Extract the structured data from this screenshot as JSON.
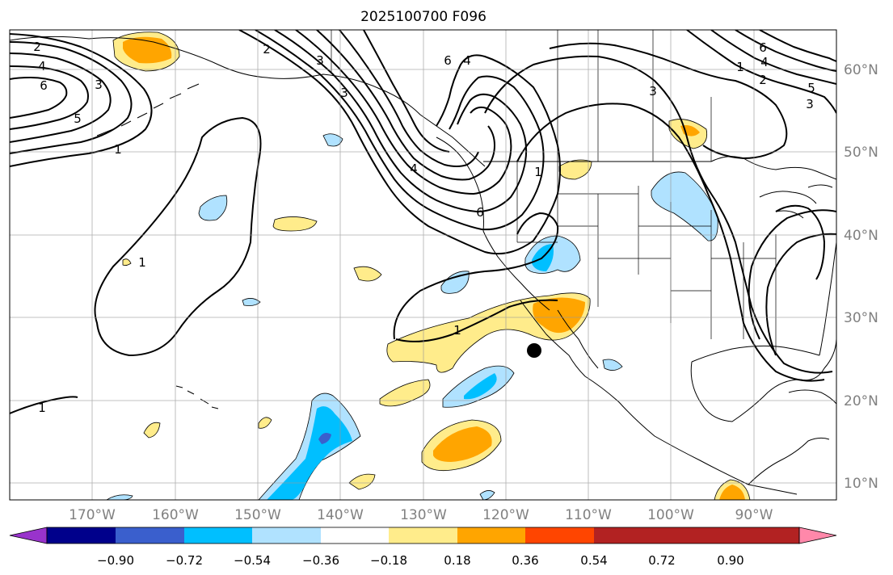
{
  "title": "2025100700 F096",
  "map": {
    "lon_labels": [
      "170°W",
      "160°W",
      "150°W",
      "140°W",
      "130°W",
      "120°W",
      "110°W",
      "100°W",
      "90°W"
    ],
    "lat_labels": [
      "60°N",
      "50°N",
      "40°N",
      "30°N",
      "20°N",
      "10°N"
    ],
    "gridlines": true,
    "marker": {
      "lon": -115.8,
      "lat": 26.0,
      "color": "#000000",
      "name": "black-dot"
    }
  },
  "colorbar": {
    "ticks": [
      "−0.90",
      "−0.72",
      "−0.54",
      "−0.36",
      "−0.18",
      "0.18",
      "0.36",
      "0.54",
      "0.72",
      "0.90"
    ],
    "colors": [
      "#9933cc",
      "#00008b",
      "#3a5fcd",
      "#00bfff",
      "#b0e2ff",
      "#ffffff",
      "#ffec8b",
      "#ffa500",
      "#ff4500",
      "#b22222",
      "#ff88aa"
    ]
  },
  "contour_labels": [
    {
      "text": "2"
    },
    {
      "text": "4"
    },
    {
      "text": "6"
    },
    {
      "text": "3"
    },
    {
      "text": "5"
    },
    {
      "text": "1"
    },
    {
      "text": "2"
    },
    {
      "text": "3"
    },
    {
      "text": "3"
    },
    {
      "text": "6"
    },
    {
      "text": "4"
    },
    {
      "text": "4"
    },
    {
      "text": "6"
    },
    {
      "text": "1"
    },
    {
      "text": "1"
    },
    {
      "text": "1"
    },
    {
      "text": "1"
    },
    {
      "text": "6"
    },
    {
      "text": "4"
    },
    {
      "text": "3"
    },
    {
      "text": "1"
    },
    {
      "text": "2"
    },
    {
      "text": "5"
    },
    {
      "text": "3"
    }
  ]
}
